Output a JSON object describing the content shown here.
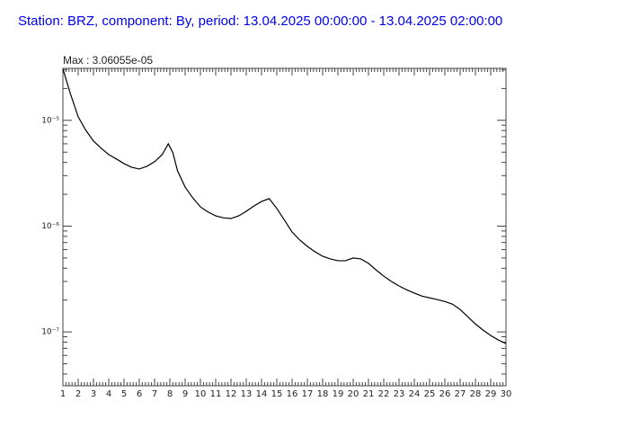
{
  "chart_data": {
    "type": "line",
    "title": "Station: BRZ, component: By, period: 13.04.2025 00:00:00 - 13.04.2025 02:00:00",
    "annotation": "Max : 3.06055e-05",
    "x": [
      1,
      1.5,
      2,
      2.5,
      3,
      3.5,
      4,
      4.5,
      5,
      5.5,
      6,
      6.5,
      7,
      7.5,
      7.9,
      8.2,
      8.5,
      9,
      9.5,
      10,
      10.5,
      11,
      11.5,
      12,
      12.5,
      13,
      13.5,
      14,
      14.5,
      15,
      15.5,
      16,
      16.5,
      17,
      17.5,
      18,
      18.5,
      19,
      19.5,
      20,
      20.5,
      21,
      21.5,
      22,
      22.5,
      23,
      23.5,
      24,
      24.5,
      25,
      25.5,
      26,
      26.5,
      27,
      27.5,
      28,
      28.5,
      29,
      29.5,
      30
    ],
    "values": [
      3.06055e-05,
      1.77e-05,
      1.08e-05,
      8.05e-06,
      6.37e-06,
      5.45e-06,
      4.75e-06,
      4.31e-06,
      3.9e-06,
      3.6e-06,
      3.47e-06,
      3.68e-06,
      4.06e-06,
      4.75e-06,
      6e-06,
      4.93e-06,
      3.34e-06,
      2.34e-06,
      1.85e-06,
      1.52e-06,
      1.36e-06,
      1.25e-06,
      1.2e-06,
      1.18e-06,
      1.25e-06,
      1.38e-06,
      1.55e-06,
      1.71e-06,
      1.82e-06,
      1.47e-06,
      1.14e-06,
      8.8e-07,
      7.4e-07,
      6.44e-07,
      5.73e-07,
      5.19e-07,
      4.9e-07,
      4.71e-07,
      4.71e-07,
      5e-07,
      4.9e-07,
      4.45e-07,
      3.85e-07,
      3.37e-07,
      3e-07,
      2.72e-07,
      2.5e-07,
      2.33e-07,
      2.18e-07,
      2.1e-07,
      2.02e-07,
      1.94e-07,
      1.83e-07,
      1.63e-07,
      1.39e-07,
      1.19e-07,
      1.04e-07,
      9.25e-08,
      8.4e-08,
      7.76e-08
    ],
    "color": "#000000",
    "xlim": [
      1,
      30
    ],
    "xticks": [
      1,
      2,
      3,
      4,
      5,
      6,
      7,
      8,
      9,
      10,
      11,
      12,
      13,
      14,
      15,
      16,
      17,
      18,
      19,
      20,
      21,
      22,
      23,
      24,
      25,
      26,
      27,
      28,
      29,
      30
    ],
    "ylim": [
      3.1e-08,
      3.1e-05
    ],
    "yscale": "log",
    "yticks": [
      {
        "value": 1e-05,
        "label": "10⁻⁵"
      },
      {
        "value": 1e-06,
        "label": "10⁻⁶"
      },
      {
        "value": 1e-07,
        "label": "10⁻⁷"
      }
    ]
  }
}
